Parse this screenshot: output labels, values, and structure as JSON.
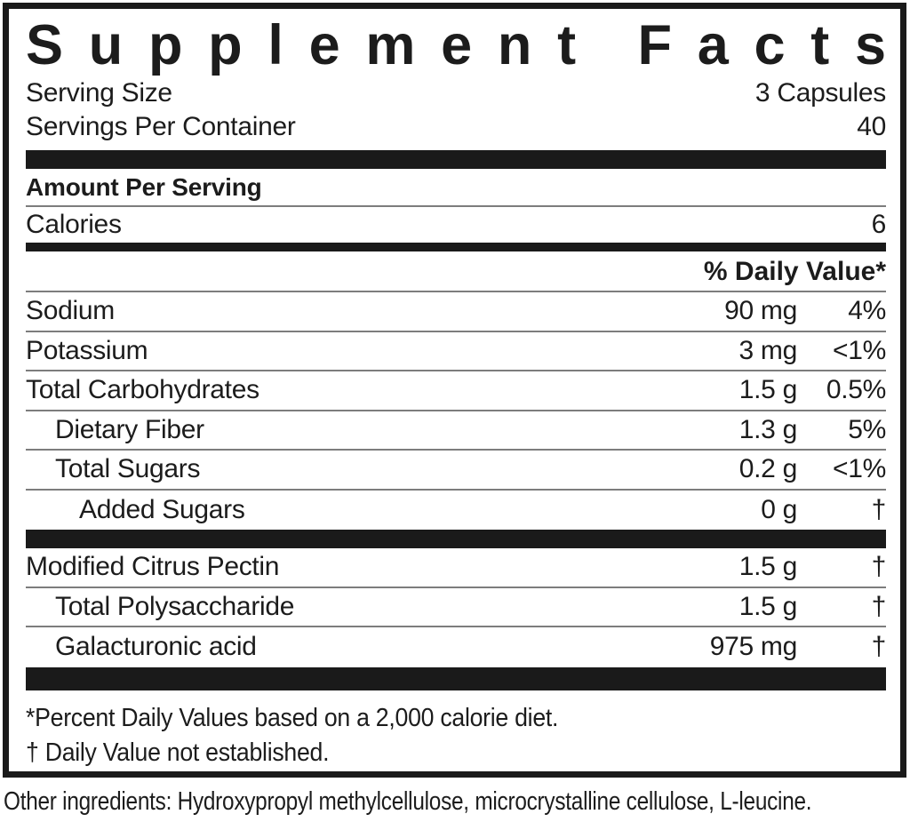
{
  "title": "Supplement Facts",
  "serving_rows": [
    {
      "label": "Serving Size",
      "value": "3 Capsules"
    },
    {
      "label": "Servings Per Container",
      "value": "40"
    }
  ],
  "amount_per_serving_label": "Amount Per Serving",
  "calories": {
    "label": "Calories",
    "value": "6"
  },
  "daily_value_header": "% Daily Value*",
  "nutrients": [
    {
      "name": "Sodium",
      "amount": "90 mg",
      "dv": "4%",
      "indent": 0
    },
    {
      "name": "Potassium",
      "amount": "3 mg",
      "dv": "<1%",
      "indent": 0
    },
    {
      "name": "Total Carbohydrates",
      "amount": "1.5 g",
      "dv": "0.5%",
      "indent": 0
    },
    {
      "name": "Dietary Fiber",
      "amount": "1.3 g",
      "dv": "5%",
      "indent": 1
    },
    {
      "name": "Total Sugars",
      "amount": "0.2 g",
      "dv": "<1%",
      "indent": 1
    },
    {
      "name": "Added Sugars",
      "amount": "0 g",
      "dv": "†",
      "indent": 2
    }
  ],
  "supplement_rows": [
    {
      "name": "Modified Citrus Pectin",
      "amount": "1.5 g",
      "dv": "†",
      "indent": 0
    },
    {
      "name": "Total Polysaccharide",
      "amount": "1.5 g",
      "dv": "†",
      "indent": 1
    },
    {
      "name": "Galacturonic acid",
      "amount": "975 mg",
      "dv": "†",
      "indent": 1
    }
  ],
  "footnotes": [
    "*Percent Daily Values based on a 2,000 calorie diet.",
    "† Daily Value not established."
  ],
  "other_ingredients": "Other ingredients: Hydroxypropyl methylcellulose, microcrystalline cellulose, L-leucine.",
  "colors": {
    "text": "#1c1c1c",
    "bar": "#1a1a1a",
    "rule": "#7d7d7d"
  }
}
